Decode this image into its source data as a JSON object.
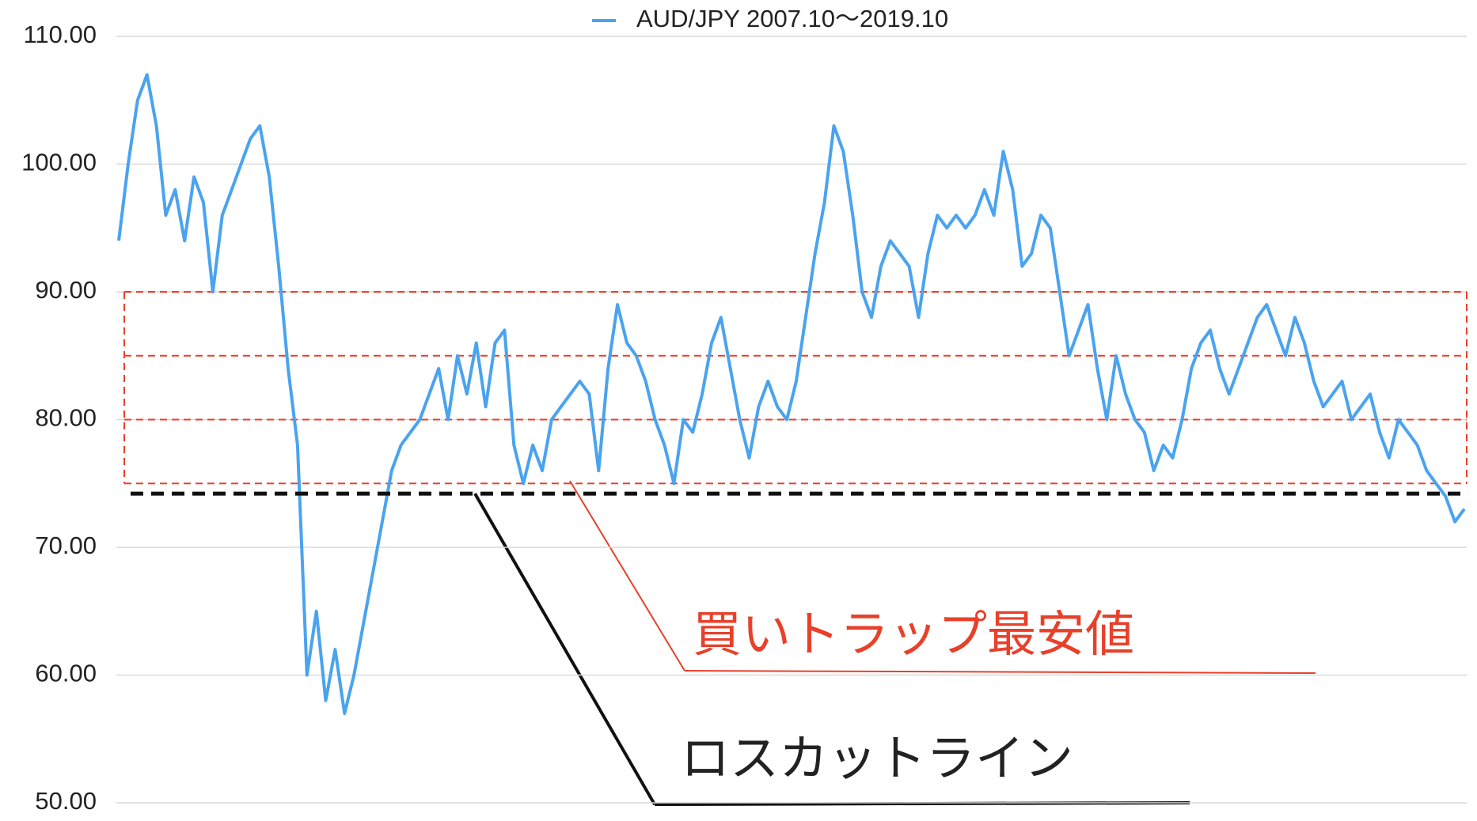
{
  "chart_data": {
    "type": "line",
    "series": [
      {
        "name": "AUD/JPY 2007.10～2019.10",
        "color": "#4aa3ef",
        "values": [
          94,
          100,
          105,
          107,
          103,
          96,
          98,
          94,
          99,
          97,
          90,
          96,
          98,
          100,
          102,
          103,
          99,
          92,
          84,
          78,
          60,
          65,
          58,
          62,
          57,
          60,
          64,
          68,
          72,
          76,
          78,
          79,
          80,
          82,
          84,
          80,
          85,
          82,
          86,
          81,
          86,
          87,
          78,
          75,
          78,
          76,
          80,
          81,
          82,
          83,
          82,
          76,
          84,
          89,
          86,
          85,
          83,
          80,
          78,
          75,
          80,
          79,
          82,
          86,
          88,
          84,
          80,
          77,
          81,
          83,
          81,
          80,
          83,
          88,
          93,
          97,
          103,
          101,
          96,
          90,
          88,
          92,
          94,
          93,
          92,
          88,
          93,
          96,
          95,
          96,
          95,
          96,
          98,
          96,
          101,
          98,
          92,
          93,
          96,
          95,
          90,
          85,
          87,
          89,
          84,
          80,
          85,
          82,
          80,
          79,
          76,
          78,
          77,
          80,
          84,
          86,
          87,
          84,
          82,
          84,
          86,
          88,
          89,
          87,
          85,
          88,
          86,
          83,
          81,
          82,
          83,
          80,
          81,
          82,
          79,
          77,
          80,
          79,
          78,
          76,
          75,
          74,
          72,
          73
        ]
      }
    ],
    "ylim": [
      50,
      110
    ],
    "yticks": [
      {
        "value": 50,
        "label": "50.00"
      },
      {
        "value": 60,
        "label": "60.00"
      },
      {
        "value": 70,
        "label": "70.00"
      },
      {
        "value": 80,
        "label": "80.00"
      },
      {
        "value": 90,
        "label": "90.00"
      },
      {
        "value": 100,
        "label": "100.00"
      },
      {
        "value": 110,
        "label": "110.00"
      }
    ],
    "grid": true,
    "trap_levels": [
      90,
      85,
      80,
      75
    ],
    "trap_color": "#e8402a",
    "losscut_level": 74.2,
    "losscut_color": "#111111",
    "annotations": [
      "買いトラップ最安値",
      "ロスカットライン"
    ]
  }
}
